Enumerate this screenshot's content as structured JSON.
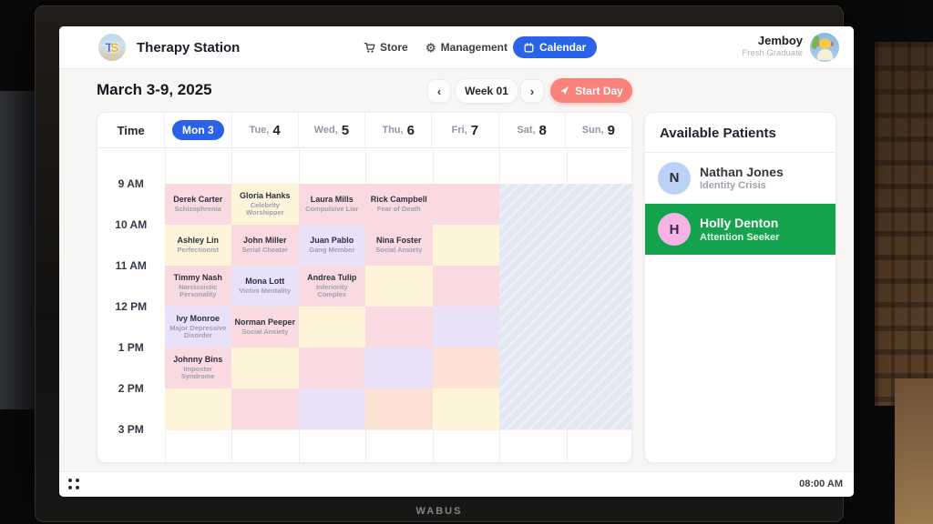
{
  "navbar": {
    "logo_text_t": "T",
    "logo_text_s": "S",
    "app_title": "Therapy Station",
    "store_label": "Store",
    "management_label": "Management",
    "calendar_label": "Calendar",
    "gear_glyph": "⚙",
    "user_name": "Jemboy",
    "user_subtitle": "Fresh Graduate"
  },
  "toolbar": {
    "date_range": "March 3-9, 2025",
    "prev_glyph": "‹",
    "week_label": "Week 01",
    "next_glyph": "›",
    "start_day_label": "Start Day"
  },
  "calendar": {
    "time_header": "Time",
    "days": [
      {
        "name": "Mon",
        "num": "3",
        "active": true
      },
      {
        "name": "Tue,",
        "num": "4"
      },
      {
        "name": "Wed,",
        "num": "5"
      },
      {
        "name": "Thu,",
        "num": "6"
      },
      {
        "name": "Fri,",
        "num": "7"
      },
      {
        "name": "Sat,",
        "num": "8"
      },
      {
        "name": "Sun,",
        "num": "9"
      }
    ],
    "times": [
      "9 AM",
      "10 AM",
      "11 AM",
      "12 PM",
      "1 PM",
      "2 PM",
      "3 PM"
    ],
    "weekend_blocked_days": [
      "Sat",
      "Sun"
    ],
    "rows": [
      {
        "cells": [
          {
            "patient": "Derek Carter",
            "condition": "Schizophrenia",
            "color": "pink"
          },
          {
            "patient": "Gloria Hanks",
            "condition": "Celebrity Worshipper",
            "color": "cream"
          },
          {
            "patient": "Laura Mills",
            "condition": "Compulsive Liar",
            "color": "pink"
          },
          {
            "patient": "Rick Campbell",
            "condition": "Fear of Death",
            "color": "pink"
          },
          {
            "color": "pink"
          }
        ]
      },
      {
        "cells": [
          {
            "patient": "Ashley Lin",
            "condition": "Perfectionist",
            "color": "cream"
          },
          {
            "patient": "John Miller",
            "condition": "Serial Cheater",
            "color": "pink"
          },
          {
            "patient": "Juan Pablo",
            "condition": "Gang Member",
            "color": "lavender"
          },
          {
            "patient": "Nina Foster",
            "condition": "Social Anxiety",
            "color": "pink"
          },
          {
            "color": "cream"
          }
        ]
      },
      {
        "cells": [
          {
            "patient": "Timmy Nash",
            "condition": "Narcissistic Personality",
            "color": "pink"
          },
          {
            "patient": "Mona Lott",
            "condition": "Victim Mentality",
            "color": "lavender"
          },
          {
            "patient": "Andrea Tulip",
            "condition": "Inferiority Complex",
            "color": "pink"
          },
          {
            "color": "cream"
          },
          {
            "color": "pink"
          }
        ]
      },
      {
        "cells": [
          {
            "patient": "Ivy Monroe",
            "condition": "Major Depressive Disorder",
            "color": "lavender"
          },
          {
            "patient": "Norman Peeper",
            "condition": "Social Anxiety",
            "color": "pink"
          },
          {
            "color": "cream"
          },
          {
            "color": "pink"
          },
          {
            "color": "lavender"
          }
        ]
      },
      {
        "cells": [
          {
            "patient": "Johnny Bins",
            "condition": "Imposter Syndrome",
            "color": "pink"
          },
          {
            "color": "cream"
          },
          {
            "color": "pink"
          },
          {
            "color": "lavender"
          },
          {
            "color": "peach"
          }
        ]
      },
      {
        "cells": [
          {
            "color": "cream"
          },
          {
            "color": "pink"
          },
          {
            "color": "lavender"
          },
          {
            "color": "peach"
          },
          {
            "color": "cream"
          }
        ]
      }
    ]
  },
  "patients_panel": {
    "title": "Available Patients",
    "patients": [
      {
        "initial": "N",
        "name": "Nathan Jones",
        "condition": "Identity Crisis",
        "selected": false
      },
      {
        "initial": "H",
        "name": "Holly Denton",
        "condition": "Attention Seeker",
        "selected": true
      }
    ]
  },
  "taskbar": {
    "clock": "08:00 AM"
  },
  "monitor": {
    "brand": "WABUS"
  },
  "colors": {
    "accent_blue": "#2b63e8",
    "start_day_red": "#f9827c",
    "selected_green": "#15a34d",
    "cell_pink": "#fadae1",
    "cell_cream": "#fdf4da",
    "cell_lavender": "#e8e1f8",
    "cell_peach": "#fbe2d4",
    "weekend_hatch": "#e2e7f3"
  }
}
